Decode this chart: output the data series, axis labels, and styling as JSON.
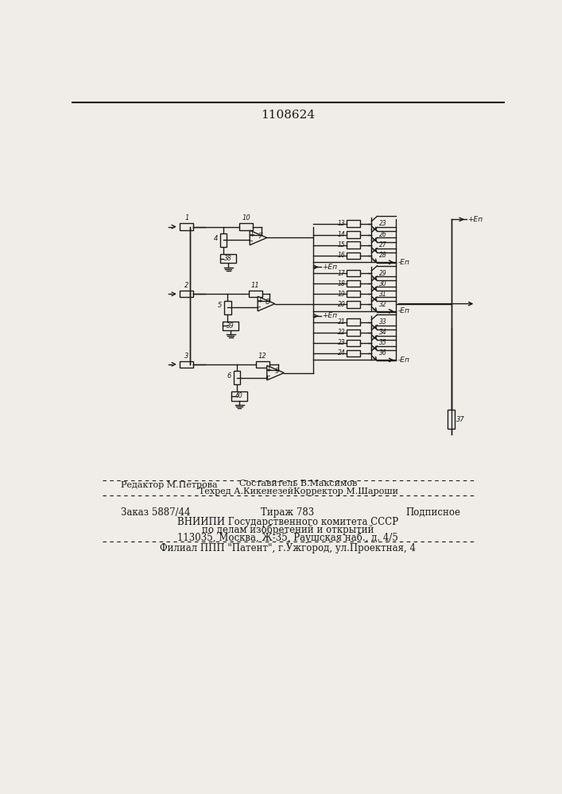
{
  "title": "1108624",
  "bg_color": "#f0ede8",
  "line_color": "#1a1a1a",
  "text_color": "#1a1a1a",
  "footer_line1_left": "Редактор М.Петрова",
  "footer_line1_center": "Составитель В.Максимов",
  "footer_line2_center": "Техред А.КикенезейКорректор М.Шароши",
  "footer_order": "Заказ 5887/44",
  "footer_tirazh": "Тираж 783",
  "footer_podpisnoe": "Подписное",
  "footer_vnipi": "ВНИИПИ Государственного комитета СССР",
  "footer_po_delam": "по делам изобретений и открытий",
  "footer_address": "113035, Москва, Ж-35, Раушская наб., д. 4/5",
  "footer_filial": "Филиал ППП \"Патент\", г.Ужгород, ул.Проектная, 4"
}
